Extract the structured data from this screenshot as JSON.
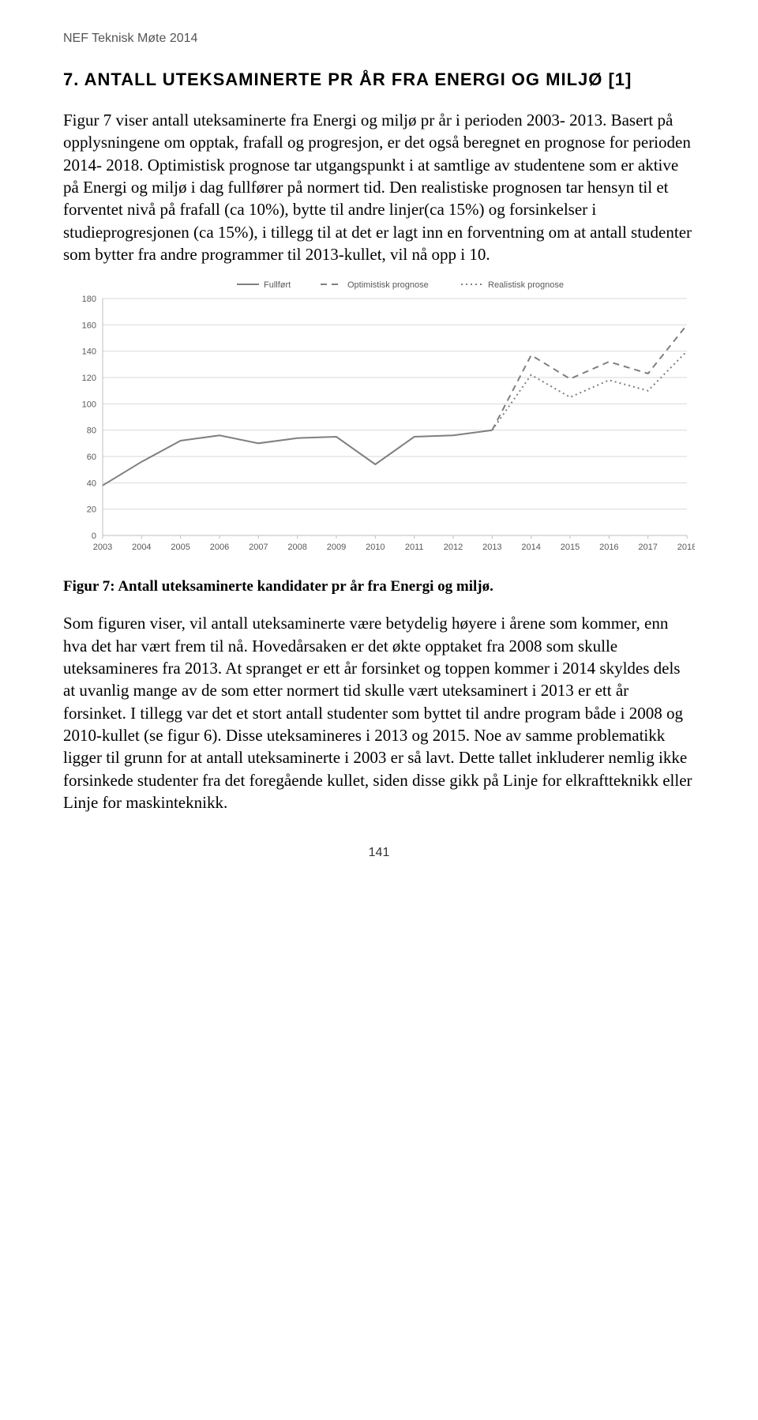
{
  "header": "NEF Teknisk Møte 2014",
  "section_number": "7.",
  "section_title": "ANTALL UTEKSAMINERTE PR ÅR FRA ENERGI OG MILJØ [1]",
  "para1": "Figur 7 viser antall uteksaminerte fra Energi og miljø pr år i perioden 2003- 2013. Basert på opplysningene om opptak, frafall og progresjon, er det også beregnet en prognose for perioden 2014- 2018. Optimistisk prognose tar utgangspunkt i at samtlige av studentene som er aktive på Energi og miljø i dag fullfører på normert tid. Den realistiske prognosen tar hensyn til et forventet nivå på frafall (ca 10%), bytte til andre linjer(ca 15%) og forsinkelser i studieprogresjonen (ca 15%), i tillegg til at det er lagt inn en forventning om at antall studenter som bytter fra andre programmer til 2013-kullet, vil nå opp i 10.",
  "caption": "Figur 7: Antall uteksaminerte kandidater pr år fra Energi og miljø.",
  "para2": "Som figuren viser, vil antall uteksaminerte være betydelig høyere i årene som kommer, enn hva det har vært frem til nå. Hovedårsaken er det økte opptaket fra 2008 som skulle uteksamineres fra 2013. At spranget er ett år forsinket og toppen kommer i 2014 skyldes dels at uvanlig mange av de som etter normert tid skulle vært uteksaminert i 2013 er ett år forsinket. I tillegg var det et stort antall studenter som byttet til andre program både i 2008 og 2010-kullet (se figur 6). Disse uteksamineres i 2013 og 2015. Noe av samme problematikk ligger til grunn for at antall uteksaminerte i 2003 er så lavt. Dette tallet inkluderer nemlig ikke forsinkede studenter fra det foregående kullet, siden disse gikk på Linje for elkraftteknikk eller Linje for maskinteknikk.",
  "page_number": "141",
  "chart": {
    "type": "line",
    "legend": {
      "items": [
        {
          "label": "Fullført",
          "style": "solid",
          "color": "#7f7f7f"
        },
        {
          "label": "Optimistisk prognose",
          "style": "dashed",
          "color": "#7f7f7f"
        },
        {
          "label": "Realistisk prognose",
          "style": "dotted",
          "color": "#7f7f7f"
        }
      ],
      "fontsize": 11,
      "text_color": "#595959"
    },
    "background_color": "#ffffff",
    "grid_color": "#d9d9d9",
    "axis_line_color": "#bfbfbf",
    "axis_label_color": "#595959",
    "axis_fontsize": 11,
    "line_width": 2,
    "x": {
      "categories": [
        "2003",
        "2004",
        "2005",
        "2006",
        "2007",
        "2008",
        "2009",
        "2010",
        "2011",
        "2012",
        "2013",
        "2014",
        "2015",
        "2016",
        "2017",
        "2018"
      ]
    },
    "y": {
      "min": 0,
      "max": 180,
      "tick_step": 20,
      "ticks": [
        0,
        20,
        40,
        60,
        80,
        100,
        120,
        140,
        160,
        180
      ]
    },
    "series": {
      "fullfort": {
        "color": "#7f7f7f",
        "dash": "none",
        "data": [
          38,
          56,
          72,
          76,
          70,
          74,
          75,
          54,
          75,
          76,
          80,
          null,
          null,
          null,
          null,
          null
        ]
      },
      "optimistisk": {
        "color": "#7f7f7f",
        "dash": "8,6",
        "data": [
          null,
          null,
          null,
          null,
          null,
          null,
          null,
          null,
          null,
          null,
          80,
          137,
          119,
          132,
          123,
          160
        ]
      },
      "realistisk": {
        "color": "#7f7f7f",
        "dash": "2,4",
        "data": [
          null,
          null,
          null,
          null,
          null,
          null,
          null,
          null,
          null,
          null,
          80,
          122,
          105,
          118,
          110,
          140
        ]
      }
    }
  }
}
